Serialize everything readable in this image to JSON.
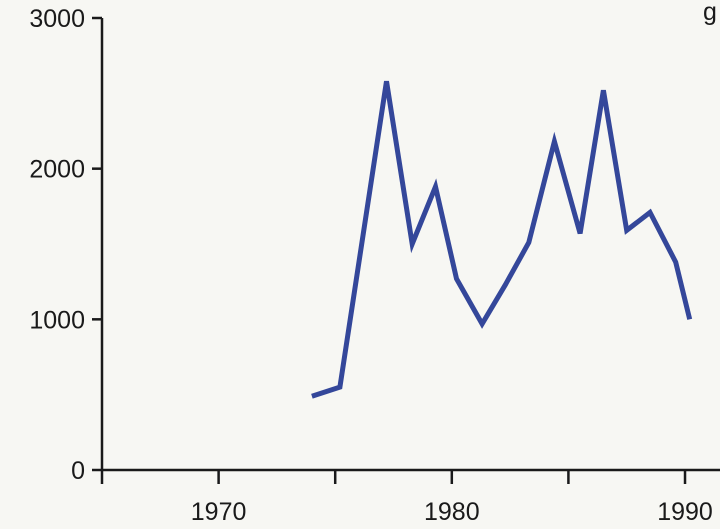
{
  "chart_data": {
    "type": "line",
    "title": "",
    "xlabel": "",
    "ylabel": "",
    "corner_text": "g",
    "xlim": [
      1965,
      1991.5
    ],
    "ylim": [
      0,
      3000
    ],
    "x_ticks": [
      1965,
      1970,
      1975,
      1980,
      1985,
      1990
    ],
    "x_tick_labels": [
      "1970",
      "1980",
      "1990"
    ],
    "x_tick_label_values": [
      1970,
      1980,
      1990
    ],
    "y_ticks": [
      0,
      1000,
      2000,
      3000
    ],
    "y_tick_labels": [
      "0",
      "1000",
      "2000",
      "3000"
    ],
    "grid": false,
    "series": [
      {
        "color": "#34479a",
        "x": [
          1974,
          1975.2,
          1977.2,
          1978.3,
          1979.3,
          1980.2,
          1981.3,
          1982.3,
          1983.3,
          1984.4,
          1985.5,
          1986.5,
          1987.5,
          1988.5,
          1989.6,
          1990.2
        ],
        "y": [
          490,
          550,
          2580,
          1500,
          1880,
          1270,
          970,
          1230,
          1510,
          2180,
          1570,
          2520,
          1590,
          1710,
          1380,
          1000
        ]
      }
    ]
  }
}
